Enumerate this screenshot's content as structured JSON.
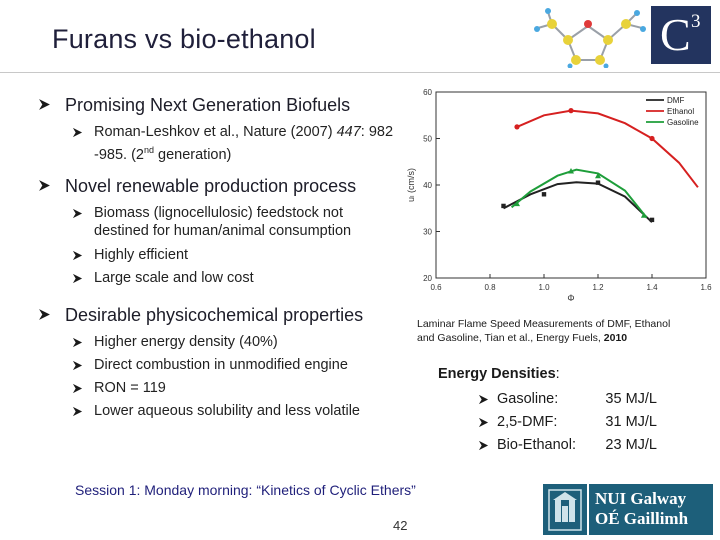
{
  "slide": {
    "title": "Furans vs bio-ethanol",
    "logo_text": "C",
    "logo_sup": "3",
    "bullets": [
      {
        "text": "Promising Next Generation Biofuels",
        "sub": [
          {
            "line1": "Roman-Leshkov et al., Nature (2007) ",
            "italic": "447",
            "line1b": ": 982",
            "line2a": "-985. (2",
            "sup": "nd",
            "line2b": " generation)"
          }
        ]
      },
      {
        "text": "Novel renewable production process",
        "sub": [
          {
            "line1": "Biomass (lignocellulosic) feedstock not",
            "line2": "destined for human/animal consumption"
          },
          {
            "line1": "Highly efficient"
          },
          {
            "line1": "Large scale and low cost"
          }
        ]
      },
      {
        "text": "Desirable physicochemical properties",
        "sub": [
          {
            "line1": "Higher energy density (40%)"
          },
          {
            "line1": "Direct combustion in unmodified engine"
          },
          {
            "line1": "RON = 119"
          },
          {
            "line1": "Lower aqueous solubility and less volatile"
          }
        ]
      }
    ],
    "caption_line1": "Laminar Flame Speed Measurements of DMF, Ethanol",
    "caption_line2": "and Gasoline, Tian et al., Energy Fuels, ",
    "caption_year": "2010",
    "energy": {
      "title": "Energy Densities",
      "colon": ":",
      "rows": [
        {
          "name": "Gasoline:",
          "value": "35 MJ/L"
        },
        {
          "name": "2,5-DMF:",
          "value": "31 MJ/L"
        },
        {
          "name": "Bio-Ethanol:",
          "value": "23 MJ/L"
        }
      ]
    },
    "session": "Session 1: Monday morning: “Kinetics of Cyclic Ethers”",
    "page_number": "42",
    "nui_logo": {
      "line1": "NUI Galway",
      "line2": "OÉ Gaillimh"
    },
    "colors": {
      "arrow": "#1a1a1a",
      "title": "#1f1f3a",
      "logo_bg": "#23345f",
      "nui_bg": "#1d5f7a",
      "session": "#1f1f7a"
    }
  },
  "chart_data": {
    "type": "line",
    "title": "",
    "xlabel": "Φ",
    "ylabel": "uₗ (cm/s)",
    "xlim": [
      0.6,
      1.6
    ],
    "ylim": [
      20,
      60
    ],
    "xticks": [
      "0.6",
      "0.8",
      "1.0",
      "1.2",
      "1.4",
      "1.6"
    ],
    "yticks": [
      "20",
      "30",
      "40",
      "50",
      "60"
    ],
    "legend": [
      "DMF",
      "Ethanol",
      "Gasoline"
    ],
    "series": [
      {
        "name": "DMF",
        "color": "#222222",
        "x": [
          0.85,
          1.0,
          1.2,
          1.4
        ],
        "y": [
          35.5,
          38.0,
          40.5,
          32.5
        ],
        "fit": [
          [
            0.85,
            35.0
          ],
          [
            0.95,
            38.0
          ],
          [
            1.05,
            40.2
          ],
          [
            1.12,
            40.6
          ],
          [
            1.2,
            40.3
          ],
          [
            1.3,
            37.5
          ],
          [
            1.4,
            32.0
          ]
        ]
      },
      {
        "name": "Ethanol",
        "color": "#d62020",
        "x": [
          0.9,
          1.1,
          1.4
        ],
        "y": [
          52.5,
          56.0,
          50.0
        ],
        "fit": [
          [
            0.9,
            52.5
          ],
          [
            1.0,
            55.0
          ],
          [
            1.1,
            56.0
          ],
          [
            1.2,
            55.4
          ],
          [
            1.3,
            53.3
          ],
          [
            1.4,
            50.0
          ],
          [
            1.5,
            44.8
          ],
          [
            1.57,
            39.5
          ]
        ]
      },
      {
        "name": "Gasoline",
        "color": "#1e9e3a",
        "x": [
          0.9,
          1.1,
          1.2,
          1.37
        ],
        "y": [
          36.0,
          43.0,
          42.0,
          33.5
        ],
        "fit": [
          [
            0.88,
            35.2
          ],
          [
            0.95,
            38.6
          ],
          [
            1.05,
            42.0
          ],
          [
            1.12,
            43.3
          ],
          [
            1.2,
            42.5
          ],
          [
            1.3,
            38.8
          ],
          [
            1.38,
            33.0
          ]
        ]
      }
    ]
  }
}
